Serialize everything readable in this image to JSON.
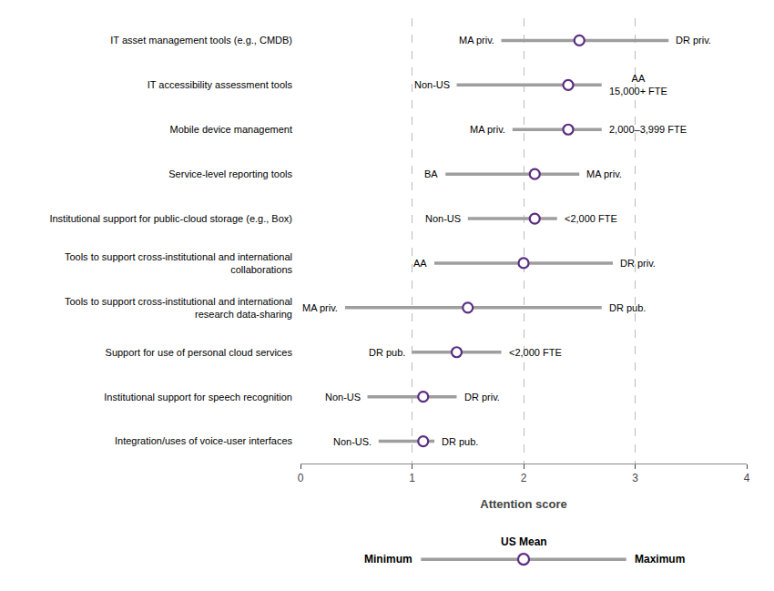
{
  "chart_data": {
    "type": "range",
    "categories": [
      "IT asset management tools (e.g., CMDB)",
      "IT accessibility assessment tools",
      "Mobile device management",
      "Service-level reporting tools",
      "Institutional support for public-cloud storage (e.g., Box)",
      "Tools to support cross-institutional and international\ncollaborations",
      "Tools to support cross-institutional and international\nresearch data-sharing",
      "Support for use of personal cloud services",
      "Institutional support for speech recognition",
      "Integration/uses of voice-user interfaces"
    ],
    "series": [
      {
        "name": "Minimum",
        "values": [
          1.8,
          1.4,
          1.9,
          1.3,
          1.5,
          1.2,
          0.4,
          1.0,
          0.6,
          0.7
        ],
        "labels": [
          "MA priv.",
          "Non-US",
          "MA priv.",
          "BA",
          "Non-US",
          "AA",
          "MA priv.",
          "DR pub.",
          "Non-US",
          "Non-US."
        ]
      },
      {
        "name": "US Mean",
        "values": [
          2.5,
          2.4,
          2.4,
          2.1,
          2.1,
          2.0,
          1.5,
          1.4,
          1.1,
          1.1
        ],
        "color": "#5b2d82"
      },
      {
        "name": "Maximum",
        "values": [
          3.3,
          2.7,
          2.7,
          2.5,
          2.3,
          2.8,
          2.7,
          1.8,
          1.4,
          1.2
        ],
        "labels": [
          "DR priv.",
          "AA\n15,000+ FTE",
          "2,000–3,999 FTE",
          "MA priv.",
          "<2,000 FTE",
          "DR priv.",
          "DR pub.",
          "<2,000 FTE",
          "DR priv.",
          "DR pub."
        ]
      }
    ],
    "color": "#9e9e9e",
    "xlabel": "Attention score",
    "xlim": [
      0,
      4
    ],
    "xticks": [
      0,
      1,
      2,
      3,
      4
    ],
    "grid": true,
    "legend": "bottom"
  }
}
